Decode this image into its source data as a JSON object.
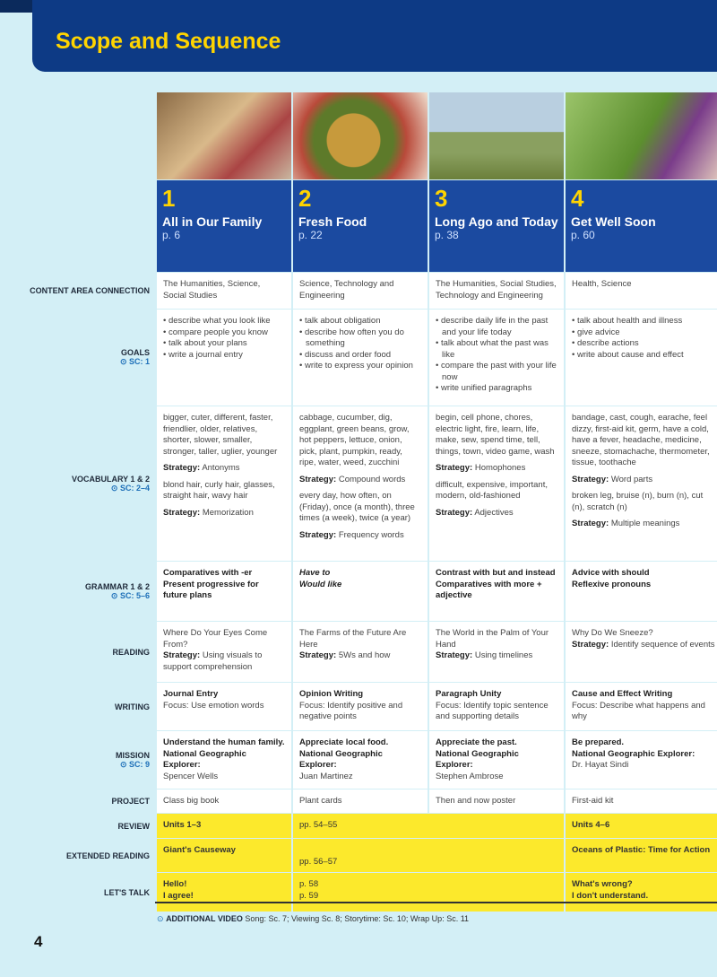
{
  "title": "Scope and Sequence",
  "page_number": "4",
  "row_labels": {
    "content": "CONTENT AREA CONNECTION",
    "goals": "GOALS",
    "goals_sc": "SC: 1",
    "vocab": "VOCABULARY 1 & 2",
    "vocab_sc": "SC: 2–4",
    "grammar": "GRAMMAR 1 & 2",
    "grammar_sc": "SC: 5–6",
    "reading": "READING",
    "writing": "WRITING",
    "mission": "MISSION",
    "mission_sc": "SC: 9",
    "project": "PROJECT",
    "review": "REVIEW",
    "extended": "EXTENDED READING",
    "talk": "LET'S TALK"
  },
  "units": [
    {
      "num": "1",
      "title": "All in Our Family",
      "page": "p. 6",
      "content": "The Humanities, Science, Social Studies",
      "goals": [
        "describe what you look like",
        "compare people you know",
        "talk about your plans",
        "write a journal entry"
      ],
      "vocab1": "bigger, cuter, different, faster, friendlier, older, relatives, shorter, slower, smaller, stronger, taller, uglier, younger",
      "strat1": "Antonyms",
      "vocab2": "blond hair, curly hair, glasses, straight hair, wavy hair",
      "strat2": "Memorization",
      "grammar": [
        "Comparatives with -er",
        "Present progressive for future plans"
      ],
      "reading_title": "Where Do Your Eyes Come From?",
      "reading_strategy": "Using visuals to support comprehension",
      "writing_title": "Journal Entry",
      "writing_focus": "Focus: Use emotion words",
      "mission": "Understand the human family.",
      "explorer": "Spencer Wells",
      "project": "Class big book"
    },
    {
      "num": "2",
      "title": "Fresh Food",
      "page": "p. 22",
      "content": "Science, Technology and Engineering",
      "goals": [
        "talk about obligation",
        "describe how often you do something",
        "discuss and order food",
        "write to express your opinion"
      ],
      "vocab1": "cabbage, cucumber, dig, eggplant, green beans, grow, hot peppers, lettuce, onion, pick, plant, pumpkin, ready, ripe, water, weed, zucchini",
      "strat1": "Compound words",
      "vocab2": "every day, how often, on (Friday), once (a month), three times (a week), twice (a year)",
      "strat2": "Frequency words",
      "grammar": [
        "Have to",
        "Would like"
      ],
      "reading_title": "The Farms of the Future Are Here",
      "reading_strategy": "5Ws and how",
      "writing_title": "Opinion Writing",
      "writing_focus": "Focus: Identify positive and negative points",
      "mission": "Appreciate local food.",
      "explorer": "Juan Martinez",
      "project": "Plant cards"
    },
    {
      "num": "3",
      "title": "Long Ago and Today",
      "page": "p. 38",
      "content": "The Humanities, Social Studies, Technology and Engineering",
      "goals": [
        "describe daily life in the past and your life today",
        "talk about what the past was like",
        "compare the past with your life now",
        "write unified paragraphs"
      ],
      "vocab1": "begin, cell phone, chores, electric light, fire, learn, life, make, sew, spend time, tell, things, town, video game, wash",
      "strat1": "Homophones",
      "vocab2": "difficult, expensive, important, modern, old-fashioned",
      "strat2": "Adjectives",
      "grammar": [
        "Contrast with but and instead",
        "Comparatives with more + adjective"
      ],
      "reading_title": "The World in the Palm of Your Hand",
      "reading_strategy": "Using timelines",
      "writing_title": "Paragraph Unity",
      "writing_focus": "Focus: Identify topic sentence and supporting details",
      "mission": "Appreciate the past.",
      "explorer": "Stephen Ambrose",
      "project": "Then and now poster"
    },
    {
      "num": "4",
      "title": "Get Well Soon",
      "page": "p. 60",
      "content": "Health, Science",
      "goals": [
        "talk about health and illness",
        "give advice",
        "describe actions",
        "write about cause and effect"
      ],
      "vocab1": "bandage, cast, cough, earache, feel dizzy, first-aid kit, germ, have a cold, have a fever, headache, medicine, sneeze, stomachache, thermometer, tissue, toothache",
      "strat1": "Word parts",
      "vocab2": "broken leg, bruise (n), burn (n), cut (n), scratch (n)",
      "strat2": "Multiple meanings",
      "grammar": [
        "Advice with should",
        "Reflexive pronouns"
      ],
      "reading_title": "Why Do We Sneeze?",
      "reading_strategy": "Identify sequence of events",
      "writing_title": "Cause and Effect Writing",
      "writing_focus": "Focus: Describe what happens and why",
      "mission": "Be prepared.",
      "explorer": "Dr. Hayat Sindi",
      "project": "First-aid kit"
    }
  ],
  "strategy_label": "Strategy:",
  "explorer_label": "National Geographic Explorer:",
  "review": {
    "a": "Units 1–3",
    "pages": "pp. 54–55",
    "b": "Units 4–6"
  },
  "extended": {
    "a": "Giant's Causeway",
    "pages": "pp. 56–57",
    "b": "Oceans of Plastic: Time for Action"
  },
  "talk": {
    "a1": "Hello!",
    "a2": "I agree!",
    "p1": "p. 58",
    "p2": "p. 59",
    "b1": "What's wrong?",
    "b2": "I don't understand."
  },
  "footer": {
    "label": "ADDITIONAL VIDEO",
    "text": "Song: Sc. 7; Viewing Sc. 8; Storytime: Sc. 10; Wrap Up: Sc. 11"
  },
  "colors": {
    "navy": "#0d3a85",
    "title_yellow": "#ffd400",
    "band_yellow": "#fce92c",
    "background": "#d3eff6"
  }
}
